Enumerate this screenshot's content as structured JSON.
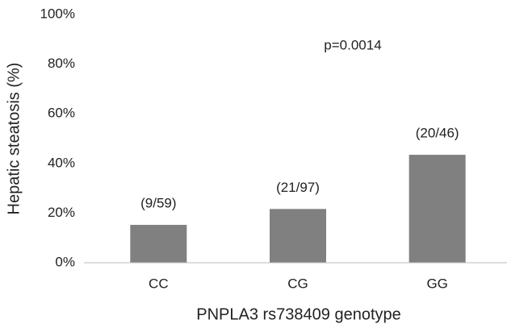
{
  "chart_data": {
    "type": "bar",
    "y_label": "Hepatic steatosis (%)",
    "x_label": "PNPLA3 rs738409 genotype",
    "annotation": "p=0.0014",
    "categories": [
      "CC",
      "CG",
      "GG"
    ],
    "values": [
      15.25,
      21.65,
      43.48
    ],
    "bar_labels": [
      "(9/59)",
      "(21/97)",
      "(20/46)"
    ],
    "color": "#808080",
    "ylim": [
      0,
      100
    ],
    "yticks": [
      {
        "value": 0,
        "label": "0%"
      },
      {
        "value": 20,
        "label": "20%"
      },
      {
        "value": 40,
        "label": "40%"
      },
      {
        "value": 60,
        "label": "60%"
      },
      {
        "value": 80,
        "label": "80%"
      },
      {
        "value": 100,
        "label": "100%"
      }
    ],
    "grid": false
  }
}
